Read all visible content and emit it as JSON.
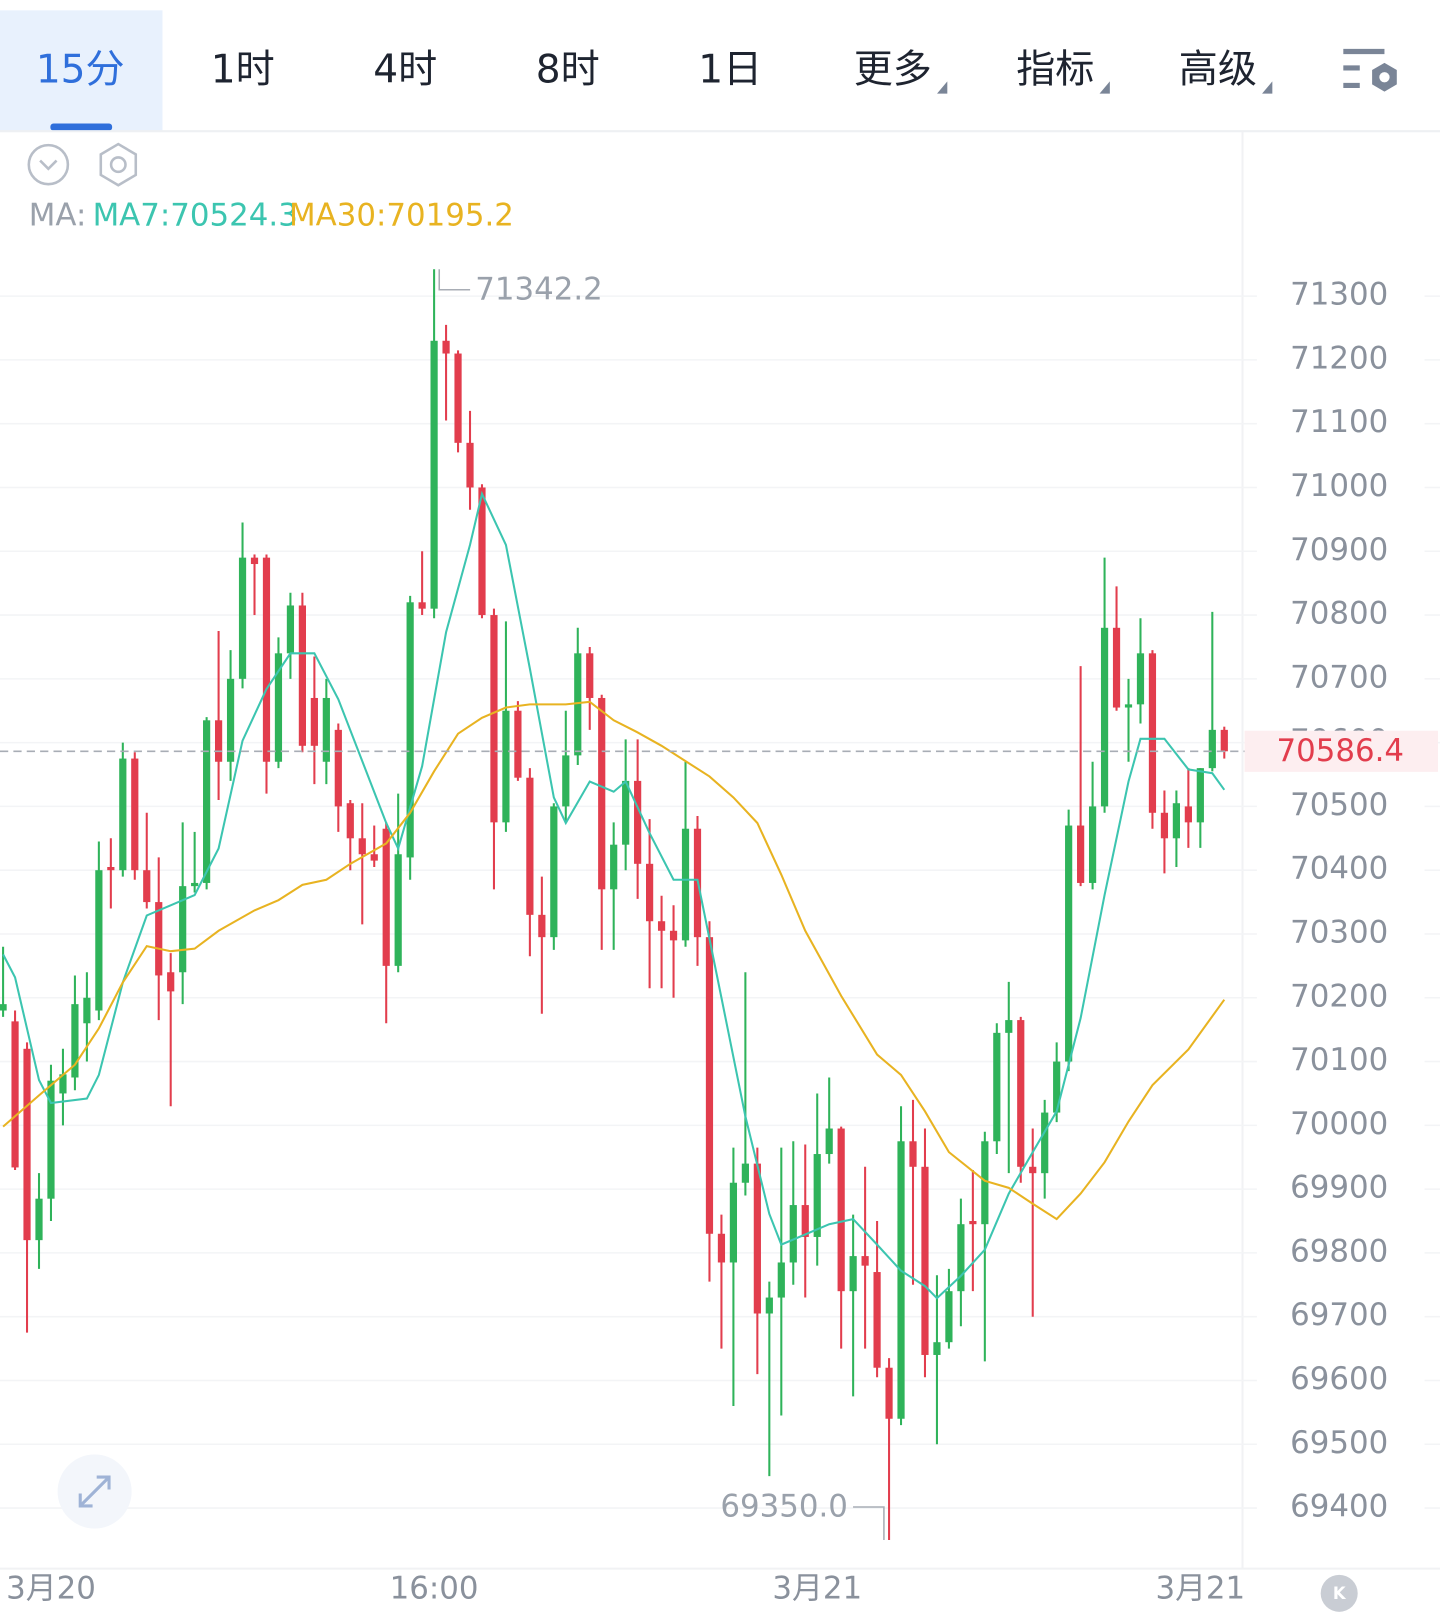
{
  "toolbar": {
    "tabs": [
      {
        "label": "15分"
      },
      {
        "label": "1时"
      },
      {
        "label": "4时"
      },
      {
        "label": "8时"
      },
      {
        "label": "1日"
      },
      {
        "label": "更多",
        "menu": true
      },
      {
        "label": "指标",
        "menu": true
      },
      {
        "label": "高级",
        "menu": true
      }
    ],
    "selected": 0
  },
  "chart_data": {
    "type": "candlestick",
    "ma_prefix": "MA:",
    "up_color": "#2fb35a",
    "down_color": "#e23d4d",
    "ylim": [
      69305,
      71361
    ],
    "yticks": [
      69400,
      69500,
      69600,
      69700,
      69800,
      69900,
      70000,
      70100,
      70200,
      70300,
      70400,
      70500,
      70600,
      70700,
      70800,
      70900,
      71000,
      71100,
      71200,
      71300
    ],
    "grid": true,
    "categories": [
      null,
      null,
      null,
      null,
      "3月20",
      null,
      null,
      null,
      null,
      null,
      null,
      null,
      null,
      null,
      null,
      null,
      null,
      null,
      null,
      null,
      null,
      null,
      null,
      null,
      null,
      null,
      null,
      null,
      null,
      null,
      null,
      null,
      null,
      null,
      null,
      null,
      "16:00",
      null,
      null,
      null,
      null,
      null,
      null,
      null,
      null,
      null,
      null,
      null,
      null,
      null,
      null,
      null,
      null,
      null,
      null,
      null,
      null,
      null,
      null,
      null,
      null,
      null,
      null,
      null,
      null,
      null,
      null,
      null,
      "3月21",
      null,
      null,
      null,
      null,
      null,
      null,
      null,
      null,
      null,
      null,
      null,
      null,
      null,
      null,
      null,
      null,
      null,
      null,
      null,
      null,
      null,
      null,
      null,
      null,
      null,
      null,
      null,
      null,
      null,
      null,
      null,
      "3月21",
      null,
      null
    ],
    "ohlc": [
      [
        70180,
        70280,
        70170,
        70190
      ],
      [
        70163,
        70180,
        69930,
        69934
      ],
      [
        70120,
        70130,
        69675,
        69820
      ],
      [
        69820,
        69925,
        69775,
        69885
      ],
      [
        69885,
        70095,
        69850,
        70070
      ],
      [
        70050,
        70120,
        70000,
        70080
      ],
      [
        70075,
        70235,
        70055,
        70190
      ],
      [
        70160,
        70240,
        70100,
        70200
      ],
      [
        70180,
        70445,
        70165,
        70400
      ],
      [
        70405,
        70450,
        70340,
        70400
      ],
      [
        70400,
        70600,
        70390,
        70575
      ],
      [
        70575,
        70585,
        70385,
        70400
      ],
      [
        70400,
        70490,
        70340,
        70350
      ],
      [
        70350,
        70420,
        70165,
        70235
      ],
      [
        70240,
        70270,
        70030,
        70210
      ],
      [
        70240,
        70475,
        70190,
        70375
      ],
      [
        70375,
        70460,
        70365,
        70380
      ],
      [
        70380,
        70640,
        70370,
        70635
      ],
      [
        70635,
        70775,
        70510,
        70570
      ],
      [
        70570,
        70745,
        70540,
        70700
      ],
      [
        70700,
        70945,
        70685,
        70890
      ],
      [
        70890,
        70895,
        70800,
        70880
      ],
      [
        70890,
        70895,
        70520,
        70570
      ],
      [
        70570,
        70765,
        70560,
        70740
      ],
      [
        70740,
        70835,
        70700,
        70815
      ],
      [
        70815,
        70835,
        70585,
        70595
      ],
      [
        70670,
        70735,
        70535,
        70595
      ],
      [
        70570,
        70700,
        70535,
        70670
      ],
      [
        70620,
        70630,
        70460,
        70500
      ],
      [
        70505,
        70510,
        70400,
        70450
      ],
      [
        70450,
        70505,
        70315,
        70425
      ],
      [
        70425,
        70470,
        70405,
        70415
      ],
      [
        70465,
        70475,
        70160,
        70250
      ],
      [
        70250,
        70520,
        70240,
        70425
      ],
      [
        70420,
        70830,
        70385,
        70820
      ],
      [
        70820,
        70900,
        70800,
        70810
      ],
      [
        70810,
        71342.2,
        70795,
        71230
      ],
      [
        71230,
        71255,
        71105,
        71210
      ],
      [
        71210,
        71215,
        71055,
        71070
      ],
      [
        71070,
        71120,
        70965,
        71000
      ],
      [
        71000,
        71005,
        70795,
        70800
      ],
      [
        70800,
        70810,
        70370,
        70475
      ],
      [
        70475,
        70790,
        70460,
        70650
      ],
      [
        70650,
        70665,
        70540,
        70545
      ],
      [
        70545,
        70560,
        70265,
        70330
      ],
      [
        70330,
        70390,
        70175,
        70295
      ],
      [
        70295,
        70505,
        70275,
        70500
      ],
      [
        70500,
        70650,
        70475,
        70580
      ],
      [
        70580,
        70780,
        70565,
        70740
      ],
      [
        70740,
        70750,
        70620,
        70670
      ],
      [
        70670,
        70675,
        70275,
        70370
      ],
      [
        70370,
        70475,
        70275,
        70440
      ],
      [
        70440,
        70605,
        70400,
        70540
      ],
      [
        70540,
        70605,
        70355,
        70410
      ],
      [
        70410,
        70480,
        70215,
        70320
      ],
      [
        70320,
        70360,
        70215,
        70305
      ],
      [
        70305,
        70345,
        70200,
        70290
      ],
      [
        70290,
        70570,
        70280,
        70465
      ],
      [
        70465,
        70485,
        70250,
        70295
      ],
      [
        70295,
        70320,
        69755,
        69830
      ],
      [
        69830,
        69860,
        69650,
        69785
      ],
      [
        69785,
        69965,
        69560,
        69910
      ],
      [
        69910,
        70240,
        69890,
        69940
      ],
      [
        69940,
        69965,
        69610,
        69705
      ],
      [
        69705,
        69755,
        69450,
        69730
      ],
      [
        69730,
        69965,
        69545,
        69785
      ],
      [
        69785,
        69975,
        69750,
        69875
      ],
      [
        69875,
        69970,
        69730,
        69825
      ],
      [
        69825,
        70050,
        69780,
        69955
      ],
      [
        69955,
        70075,
        69940,
        69995
      ],
      [
        69995,
        69998,
        69650,
        69740
      ],
      [
        69740,
        69860,
        69575,
        69795
      ],
      [
        69795,
        69935,
        69650,
        69780
      ],
      [
        69770,
        69850,
        69605,
        69620
      ],
      [
        69620,
        69635,
        69350,
        69540
      ],
      [
        69540,
        70030,
        69530,
        69975
      ],
      [
        69975,
        70040,
        69750,
        69935
      ],
      [
        69935,
        69995,
        69605,
        69640
      ],
      [
        69640,
        69765,
        69500,
        69660
      ],
      [
        69660,
        69775,
        69650,
        69740
      ],
      [
        69740,
        69885,
        69685,
        69845
      ],
      [
        69850,
        69930,
        69740,
        69845
      ],
      [
        69845,
        69990,
        69630,
        69975
      ],
      [
        69975,
        70160,
        69955,
        70145
      ],
      [
        70145,
        70225,
        69925,
        70165
      ],
      [
        70165,
        70170,
        69910,
        69935
      ],
      [
        69935,
        69995,
        69700,
        69925
      ],
      [
        69925,
        70040,
        69885,
        70020
      ],
      [
        70020,
        70130,
        70005,
        70100
      ],
      [
        70100,
        70495,
        70085,
        70470
      ],
      [
        70470,
        70720,
        70375,
        70380
      ],
      [
        70380,
        70570,
        70370,
        70500
      ],
      [
        70500,
        70890,
        70490,
        70780
      ],
      [
        70780,
        70845,
        70650,
        70655
      ],
      [
        70655,
        70700,
        70570,
        70660
      ],
      [
        70660,
        70795,
        70630,
        70740
      ],
      [
        70740,
        70745,
        70465,
        70490
      ],
      [
        70490,
        70525,
        70395,
        70450
      ],
      [
        70450,
        70525,
        70405,
        70505
      ],
      [
        70500,
        70560,
        70435,
        70475
      ],
      [
        70475,
        70560,
        70435,
        70560
      ],
      [
        70560,
        70805,
        70555,
        70620
      ],
      [
        70620,
        70625,
        70575,
        70586.4
      ]
    ],
    "ma_lines": [
      {
        "label": "MA7:70524.3",
        "color": "#3cc5b0",
        "x": [
          0,
          1,
          3,
          4,
          7,
          8,
          10,
          12,
          14,
          16,
          18,
          20,
          22,
          24,
          26,
          28,
          30,
          32,
          33,
          35,
          37,
          39,
          40,
          42,
          44,
          46,
          47,
          49,
          51,
          52,
          54,
          56,
          58,
          60,
          62,
          64,
          65,
          67,
          69,
          71,
          73,
          75,
          77,
          78,
          80,
          82,
          84,
          86,
          88,
          90,
          92,
          94,
          95,
          97,
          99,
          101,
          102
        ],
        "values": [
          70268,
          70232,
          70071,
          70035,
          70042,
          70079,
          70224,
          70329,
          70345,
          70361,
          70434,
          70603,
          70684,
          70740,
          70740,
          70668,
          70571,
          70474,
          70434,
          70563,
          70773,
          70910,
          70990,
          70910,
          70716,
          70514,
          70474,
          70539,
          70523,
          70539,
          70458,
          70385,
          70385,
          70200,
          70014,
          69861,
          69813,
          69829,
          69845,
          69853,
          69813,
          69772,
          69748,
          69729,
          69764,
          69805,
          69893,
          69958,
          70022,
          70168,
          70361,
          70539,
          70606,
          70606,
          70558,
          70552,
          70526
        ]
      },
      {
        "label": "MA30:70195.2",
        "color": "#e8b321",
        "x": [
          0,
          3,
          6,
          8,
          10,
          12,
          14,
          16,
          18,
          21,
          23,
          25,
          27,
          29,
          32,
          34,
          36,
          38,
          40,
          42,
          44,
          47,
          49,
          51,
          53,
          55,
          57,
          59,
          61,
          63,
          65,
          67,
          70,
          73,
          75,
          77,
          79,
          82,
          84,
          86,
          88,
          90,
          92,
          94,
          96,
          99,
          102
        ],
        "values": [
          69998,
          70047,
          70095,
          70152,
          70224,
          70281,
          70273,
          70277,
          70305,
          70337,
          70353,
          70377,
          70385,
          70410,
          70442,
          70490,
          70555,
          70614,
          70639,
          70655,
          70660,
          70660,
          70664,
          70635,
          70616,
          70595,
          70571,
          70547,
          70514,
          70474,
          70393,
          70305,
          70203,
          70111,
          70079,
          70022,
          69958,
          69913,
          69902,
          69877,
          69853,
          69893,
          69942,
          70006,
          70063,
          70119,
          70197
        ]
      }
    ],
    "last_price": 70586.4,
    "high_label": 71342.2,
    "low_label": {
      "value": 69350,
      "label": "69350.0"
    }
  }
}
